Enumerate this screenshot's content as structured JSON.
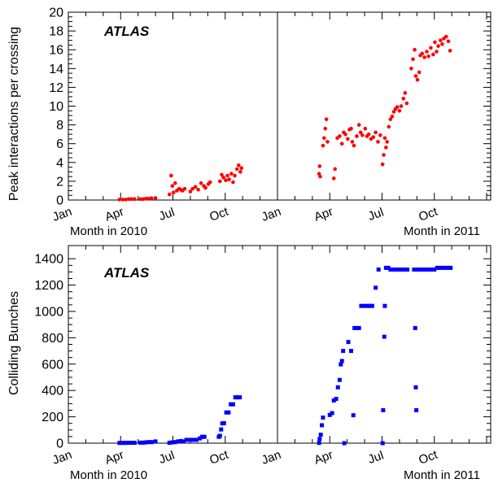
{
  "chart_data": [
    {
      "type": "scatter",
      "ylabel": "Peak interactions per crossing",
      "ylim": [
        0,
        20
      ],
      "yticks": [
        0,
        2,
        4,
        6,
        8,
        10,
        12,
        14,
        16,
        18,
        20
      ],
      "x_range_months": [
        "Jan 2010",
        "Dec 2011"
      ],
      "x_tick_labels": [
        "Jan",
        "Apr",
        "Jul",
        "Oct",
        "Jan",
        "Apr",
        "Jul",
        "Oct"
      ],
      "xlabel_left": "Month in 2010",
      "xlabel_right": "Month in 2011",
      "annotation": "ATLAS",
      "marker": "circle",
      "color": "#ff0000",
      "series": [
        {
          "points": [
            [
              "2010-03-30",
              0.05
            ],
            [
              "2010-04-05",
              0.05
            ],
            [
              "2010-04-10",
              0.05
            ],
            [
              "2010-04-15",
              0.1
            ],
            [
              "2010-04-20",
              0.1
            ],
            [
              "2010-04-25",
              0.1
            ],
            [
              "2010-05-05",
              0.1
            ],
            [
              "2010-05-10",
              0.1
            ],
            [
              "2010-05-15",
              0.15
            ],
            [
              "2010-05-20",
              0.15
            ],
            [
              "2010-05-25",
              0.2
            ],
            [
              "2010-06-01",
              0.2
            ],
            [
              "2010-06-25",
              0.6
            ],
            [
              "2010-06-28",
              2.6
            ],
            [
              "2010-06-30",
              1.5
            ],
            [
              "2010-07-02",
              0.8
            ],
            [
              "2010-07-05",
              1.8
            ],
            [
              "2010-07-08",
              1.0
            ],
            [
              "2010-07-12",
              1.2
            ],
            [
              "2010-07-15",
              1.1
            ],
            [
              "2010-07-18",
              1.0
            ],
            [
              "2010-07-22",
              1.2
            ],
            [
              "2010-08-01",
              0.9
            ],
            [
              "2010-08-05",
              1.2
            ],
            [
              "2010-08-10",
              1.4
            ],
            [
              "2010-08-15",
              1.1
            ],
            [
              "2010-08-20",
              1.8
            ],
            [
              "2010-08-25",
              1.5
            ],
            [
              "2010-08-28",
              1.3
            ],
            [
              "2010-09-02",
              1.7
            ],
            [
              "2010-09-05",
              1.9
            ],
            [
              "2010-09-22",
              2.0
            ],
            [
              "2010-09-25",
              2.7
            ],
            [
              "2010-09-28",
              2.4
            ],
            [
              "2010-10-02",
              2.1
            ],
            [
              "2010-10-05",
              2.6
            ],
            [
              "2010-10-08",
              2.2
            ],
            [
              "2010-10-12",
              2.8
            ],
            [
              "2010-10-15",
              1.9
            ],
            [
              "2010-10-18",
              2.6
            ],
            [
              "2010-10-22",
              3.3
            ],
            [
              "2010-10-25",
              3.7
            ],
            [
              "2010-10-28",
              3.0
            ],
            [
              "2010-10-30",
              3.4
            ],
            [
              "2011-03-13",
              2.8
            ],
            [
              "2011-03-14",
              3.6
            ],
            [
              "2011-03-15",
              2.5
            ],
            [
              "2011-03-20",
              5.8
            ],
            [
              "2011-03-22",
              6.6
            ],
            [
              "2011-03-24",
              7.6
            ],
            [
              "2011-03-26",
              8.6
            ],
            [
              "2011-03-28",
              6.2
            ],
            [
              "2011-04-08",
              2.3
            ],
            [
              "2011-04-10",
              3.3
            ],
            [
              "2011-04-14",
              6.6
            ],
            [
              "2011-04-18",
              6.8
            ],
            [
              "2011-04-22",
              6.0
            ],
            [
              "2011-04-25",
              7.2
            ],
            [
              "2011-04-28",
              7.0
            ],
            [
              "2011-05-02",
              6.5
            ],
            [
              "2011-05-05",
              7.5
            ],
            [
              "2011-05-08",
              7.6
            ],
            [
              "2011-05-10",
              6.2
            ],
            [
              "2011-05-13",
              5.8
            ],
            [
              "2011-05-18",
              6.8
            ],
            [
              "2011-05-22",
              8.0
            ],
            [
              "2011-05-25",
              7.2
            ],
            [
              "2011-05-28",
              6.9
            ],
            [
              "2011-06-02",
              7.6
            ],
            [
              "2011-06-05",
              6.8
            ],
            [
              "2011-06-08",
              7.0
            ],
            [
              "2011-06-12",
              6.5
            ],
            [
              "2011-06-16",
              6.7
            ],
            [
              "2011-06-20",
              7.2
            ],
            [
              "2011-06-24",
              6.2
            ],
            [
              "2011-06-28",
              6.9
            ],
            [
              "2011-07-02",
              3.8
            ],
            [
              "2011-07-04",
              4.8
            ],
            [
              "2011-07-06",
              6.6
            ],
            [
              "2011-07-08",
              5.6
            ],
            [
              "2011-07-10",
              6.2
            ],
            [
              "2011-07-13",
              7.8
            ],
            [
              "2011-07-16",
              8.6
            ],
            [
              "2011-07-19",
              8.9
            ],
            [
              "2011-07-22",
              9.4
            ],
            [
              "2011-07-25",
              9.7
            ],
            [
              "2011-07-28",
              9.9
            ],
            [
              "2011-08-01",
              9.5
            ],
            [
              "2011-08-04",
              10.0
            ],
            [
              "2011-08-08",
              10.8
            ],
            [
              "2011-08-11",
              11.4
            ],
            [
              "2011-08-14",
              10.3
            ],
            [
              "2011-08-22",
              14.0
            ],
            [
              "2011-08-25",
              15.0
            ],
            [
              "2011-08-28",
              16.0
            ],
            [
              "2011-08-30",
              13.2
            ],
            [
              "2011-09-02",
              12.8
            ],
            [
              "2011-09-05",
              13.6
            ],
            [
              "2011-09-07",
              15.4
            ],
            [
              "2011-09-10",
              15.6
            ],
            [
              "2011-09-14",
              15.2
            ],
            [
              "2011-09-18",
              15.8
            ],
            [
              "2011-09-21",
              15.3
            ],
            [
              "2011-09-25",
              16.2
            ],
            [
              "2011-09-29",
              15.5
            ],
            [
              "2011-10-02",
              16.8
            ],
            [
              "2011-10-05",
              15.8
            ],
            [
              "2011-10-08",
              16.4
            ],
            [
              "2011-10-12",
              17.0
            ],
            [
              "2011-10-15",
              16.6
            ],
            [
              "2011-10-18",
              17.2
            ],
            [
              "2011-10-22",
              17.4
            ],
            [
              "2011-10-26",
              16.9
            ],
            [
              "2011-10-29",
              15.9
            ]
          ]
        }
      ]
    },
    {
      "type": "scatter",
      "ylabel": "Colliding Bunches",
      "ylim": [
        0,
        1500
      ],
      "yticks": [
        0,
        200,
        400,
        600,
        800,
        1000,
        1200,
        1400
      ],
      "x_range_months": [
        "Jan 2010",
        "Dec 2011"
      ],
      "x_tick_labels": [
        "Jan",
        "Apr",
        "Jul",
        "Oct",
        "Jan",
        "Apr",
        "Jul",
        "Oct"
      ],
      "xlabel_left": "Month in 2010",
      "xlabel_right": "Month in 2011",
      "annotation": "ATLAS",
      "marker": "square",
      "color": "#0000ff",
      "series": [
        {
          "points": [
            [
              "2010-03-30",
              2
            ],
            [
              "2010-04-05",
              2
            ],
            [
              "2010-04-10",
              2
            ],
            [
              "2010-04-15",
              3
            ],
            [
              "2010-04-20",
              3
            ],
            [
              "2010-04-25",
              3
            ],
            [
              "2010-05-05",
              4
            ],
            [
              "2010-05-10",
              4
            ],
            [
              "2010-05-15",
              6
            ],
            [
              "2010-05-20",
              8
            ],
            [
              "2010-05-25",
              8
            ],
            [
              "2010-06-01",
              12
            ],
            [
              "2010-06-25",
              3
            ],
            [
              "2010-06-30",
              6
            ],
            [
              "2010-07-05",
              8
            ],
            [
              "2010-07-10",
              13
            ],
            [
              "2010-07-15",
              16
            ],
            [
              "2010-07-20",
              13
            ],
            [
              "2010-07-25",
              25
            ],
            [
              "2010-08-01",
              25
            ],
            [
              "2010-08-06",
              25
            ],
            [
              "2010-08-12",
              25
            ],
            [
              "2010-08-18",
              36
            ],
            [
              "2010-08-22",
              48
            ],
            [
              "2010-08-26",
              48
            ],
            [
              "2010-09-20",
              48
            ],
            [
              "2010-09-22",
              56
            ],
            [
              "2010-09-24",
              104
            ],
            [
              "2010-09-26",
              150
            ],
            [
              "2010-09-29",
              152
            ],
            [
              "2010-10-03",
              233
            ],
            [
              "2010-10-07",
              233
            ],
            [
              "2010-10-11",
              295
            ],
            [
              "2010-10-15",
              295
            ],
            [
              "2010-10-19",
              348
            ],
            [
              "2010-10-23",
              348
            ],
            [
              "2010-10-27",
              348
            ],
            [
              "2011-03-13",
              2
            ],
            [
              "2011-03-14",
              32
            ],
            [
              "2011-03-16",
              64
            ],
            [
              "2011-03-18",
              136
            ],
            [
              "2011-03-20",
              194
            ],
            [
              "2011-04-01",
              214
            ],
            [
              "2011-04-05",
              228
            ],
            [
              "2011-04-08",
              324
            ],
            [
              "2011-04-12",
              336
            ],
            [
              "2011-04-15",
              424
            ],
            [
              "2011-04-18",
              480
            ],
            [
              "2011-04-20",
              598
            ],
            [
              "2011-04-22",
              624
            ],
            [
              "2011-04-24",
              700
            ],
            [
              "2011-04-26",
              0
            ],
            [
              "2011-05-03",
              768
            ],
            [
              "2011-05-08",
              700
            ],
            [
              "2011-05-12",
              212
            ],
            [
              "2011-05-14",
              874
            ],
            [
              "2011-05-18",
              874
            ],
            [
              "2011-05-22",
              874
            ],
            [
              "2011-05-26",
              1042
            ],
            [
              "2011-06-01",
              1042
            ],
            [
              "2011-06-06",
              1042
            ],
            [
              "2011-06-10",
              1042
            ],
            [
              "2011-06-14",
              1042
            ],
            [
              "2011-06-20",
              1180
            ],
            [
              "2011-06-25",
              1318
            ],
            [
              "2011-07-02",
              0
            ],
            [
              "2011-07-03",
              250
            ],
            [
              "2011-07-05",
              808
            ],
            [
              "2011-07-06",
              1042
            ],
            [
              "2011-07-08",
              1331
            ],
            [
              "2011-07-12",
              1331
            ],
            [
              "2011-07-16",
              1318
            ],
            [
              "2011-07-20",
              1318
            ],
            [
              "2011-07-25",
              1318
            ],
            [
              "2011-07-30",
              1318
            ],
            [
              "2011-08-04",
              1318
            ],
            [
              "2011-08-10",
              1318
            ],
            [
              "2011-08-15",
              1318
            ],
            [
              "2011-08-27",
              1318
            ],
            [
              "2011-08-29",
              874
            ],
            [
              "2011-08-30",
              424
            ],
            [
              "2011-08-31",
              250
            ],
            [
              "2011-09-02",
              1318
            ],
            [
              "2011-09-06",
              1318
            ],
            [
              "2011-09-10",
              1318
            ],
            [
              "2011-09-15",
              1318
            ],
            [
              "2011-09-20",
              1318
            ],
            [
              "2011-09-25",
              1318
            ],
            [
              "2011-10-01",
              1318
            ],
            [
              "2011-10-06",
              1331
            ],
            [
              "2011-10-11",
              1331
            ],
            [
              "2011-10-16",
              1331
            ],
            [
              "2011-10-21",
              1331
            ],
            [
              "2011-10-26",
              1331
            ],
            [
              "2011-10-30",
              1331
            ]
          ]
        }
      ]
    }
  ]
}
